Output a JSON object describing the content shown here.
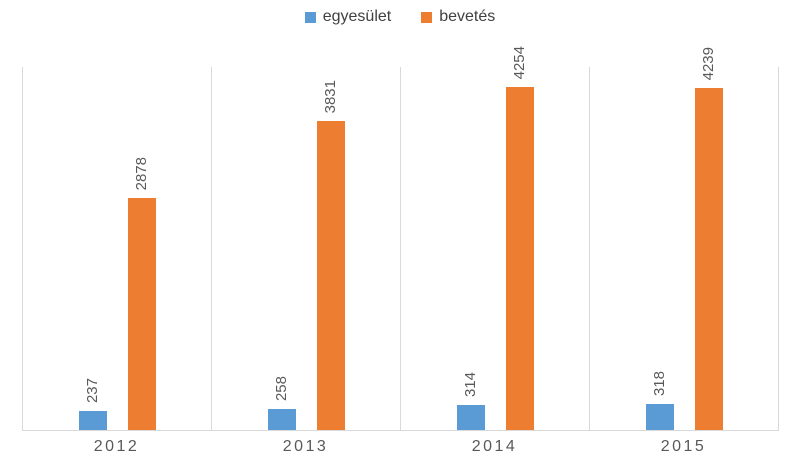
{
  "chart_data": {
    "type": "bar",
    "title": "",
    "categories": [
      "2012",
      "2013",
      "2014",
      "2015"
    ],
    "series": [
      {
        "name": "egyesület",
        "color": "#5B9BD5",
        "values": [
          237,
          258,
          314,
          318
        ]
      },
      {
        "name": "bevetés",
        "color": "#ED7D31",
        "values": [
          2878,
          3831,
          4254,
          4239
        ]
      }
    ],
    "ylim": [
      0,
      4500
    ],
    "y_axis_visible": false,
    "grid": "vertical category separators only",
    "legend_position": "top-center",
    "data_labels": "values rotated 90° above each bar"
  },
  "colors": {
    "background": "#ffffff",
    "gridline": "#d9d9d9",
    "axis_line": "#d9d9d9",
    "data_label_text": "#595959",
    "category_label_text": "#595959",
    "legend_text": "#404040"
  }
}
